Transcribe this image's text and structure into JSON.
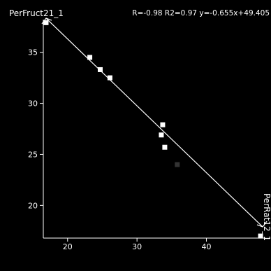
{
  "chart_data": {
    "type": "scatter",
    "ylabel": "PerFruct21_1",
    "xlabel": "PerRat12_1",
    "stats": "R=-0.98 R2=0.97  y=-0.655x+49.405",
    "xticks": [
      "20",
      "30",
      "40"
    ],
    "yticks": [
      "20",
      "25",
      "30",
      "35"
    ],
    "xlim": [
      16.5,
      48.5
    ],
    "ylim": [
      16.8,
      38.2
    ],
    "grid": false,
    "fit_line": {
      "slope": -0.655,
      "intercept": 49.405
    },
    "points": [
      {
        "x": 16.9,
        "y": 37.9,
        "highlight": false
      },
      {
        "x": 23.2,
        "y": 34.5,
        "highlight": false
      },
      {
        "x": 24.7,
        "y": 33.3,
        "highlight": false
      },
      {
        "x": 26.1,
        "y": 32.5,
        "highlight": false
      },
      {
        "x": 33.7,
        "y": 27.9,
        "highlight": false
      },
      {
        "x": 33.5,
        "y": 26.9,
        "highlight": false
      },
      {
        "x": 34.0,
        "y": 25.7,
        "highlight": false
      },
      {
        "x": 35.8,
        "y": 24.0,
        "highlight": true
      },
      {
        "x": 47.8,
        "y": 17.0,
        "highlight": false
      }
    ],
    "colors": {
      "background": "#000000",
      "foreground": "#ffffff",
      "point": "#ffffff",
      "highlight": "#333333"
    }
  }
}
